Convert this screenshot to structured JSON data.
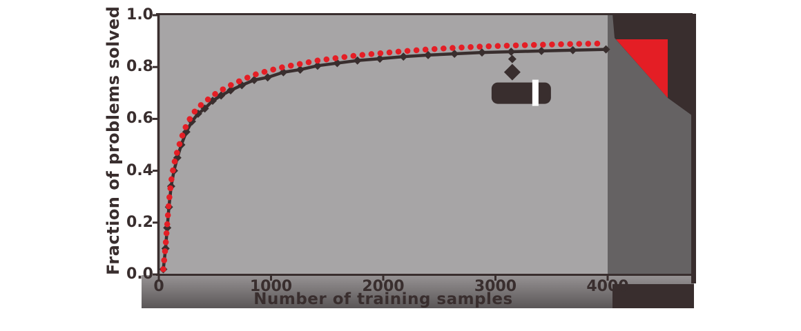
{
  "figure": {
    "background": "#ffffff",
    "plot_background": "#a7a5a6",
    "side_band_color": "#656263",
    "ink_color": "#392e2e",
    "accent_red": "#e41e25"
  },
  "chart_data": {
    "type": "line",
    "title": "",
    "xlabel": "Number of training samples",
    "ylabel": "Fraction of problems solved",
    "xlim": [
      0,
      4000
    ],
    "ylim": [
      0,
      1
    ],
    "x_ticks": [
      "0",
      "1000",
      "2000",
      "3000",
      "4000"
    ],
    "y_ticks": [
      "0.0",
      "0.2",
      "0.4",
      "0.6",
      "0.8",
      "1.0"
    ],
    "grid": false,
    "legend_position": "none",
    "x": [
      40,
      60,
      75,
      90,
      110,
      135,
      165,
      200,
      245,
      295,
      350,
      410,
      480,
      555,
      640,
      740,
      850,
      970,
      1110,
      1260,
      1415,
      1590,
      1770,
      1970,
      2180,
      2400,
      2635,
      2880,
      3140,
      3410,
      3690,
      3985
    ],
    "series": [
      {
        "name": "red-dotted-series",
        "color": "#e41e25",
        "marker": "circle-dot",
        "line_style": "dotted",
        "values": [
          0.02,
          0.11,
          0.195,
          0.28,
          0.36,
          0.425,
          0.475,
          0.525,
          0.575,
          0.615,
          0.645,
          0.665,
          0.69,
          0.71,
          0.73,
          0.75,
          0.77,
          0.785,
          0.8,
          0.812,
          0.825,
          0.835,
          0.845,
          0.853,
          0.861,
          0.868,
          0.874,
          0.879,
          0.883,
          0.886,
          0.889,
          0.891
        ]
      },
      {
        "name": "black-diamond-series",
        "color": "#392e2e",
        "marker": "diamond",
        "line_style": "solid",
        "values": [
          0.02,
          0.1,
          0.18,
          0.26,
          0.34,
          0.4,
          0.45,
          0.5,
          0.55,
          0.59,
          0.62,
          0.64,
          0.67,
          0.69,
          0.71,
          0.73,
          0.75,
          0.76,
          0.78,
          0.79,
          0.805,
          0.815,
          0.825,
          0.832,
          0.84,
          0.846,
          0.851,
          0.856,
          0.859,
          0.862,
          0.865,
          0.868
        ]
      }
    ],
    "annotation": {
      "x": 3150,
      "y": 0.775,
      "marker": "diamond",
      "badge_glyph": "|",
      "badge_color": "#392e2e",
      "badge_glyph_color": "#ffffff"
    }
  },
  "decorations": {
    "corner_ribbon": {
      "dark_color": "#392e2e",
      "red_color": "#e41e25"
    }
  }
}
